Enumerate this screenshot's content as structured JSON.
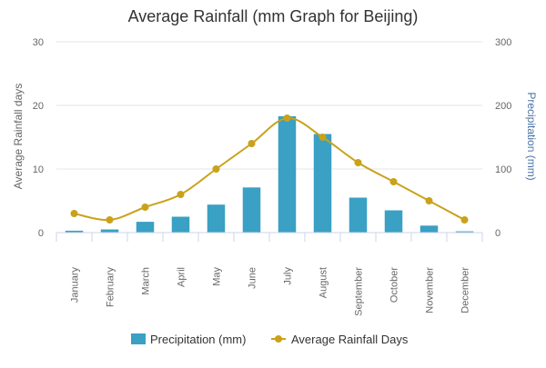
{
  "chart_data": {
    "type": "bar",
    "title": "Average Rainfall (mm Graph for Beijing)",
    "categories": [
      "January",
      "February",
      "March",
      "April",
      "May",
      "June",
      "July",
      "August",
      "September",
      "October",
      "November",
      "December"
    ],
    "series": [
      {
        "name": "Precipitation (mm)",
        "type": "bar",
        "axis": "right",
        "color": "#3aa0c4",
        "values": [
          3,
          5,
          17,
          25,
          44,
          71,
          183,
          155,
          55,
          35,
          11,
          2
        ]
      },
      {
        "name": "Average Rainfall Days",
        "type": "line",
        "axis": "left",
        "color": "#c9a21a",
        "values": [
          3,
          2,
          4,
          6,
          10,
          14,
          18,
          15,
          11,
          8,
          5,
          2
        ]
      }
    ],
    "left_axis": {
      "label": "Average Rainfall days",
      "ylim": [
        0,
        30
      ],
      "ticks": [
        0,
        10,
        20,
        30
      ]
    },
    "right_axis": {
      "label": "Precipitation (mm)",
      "ylim": [
        0,
        300
      ],
      "ticks": [
        0,
        100,
        200,
        300
      ]
    },
    "grid": true,
    "legend_position": "bottom-center"
  }
}
